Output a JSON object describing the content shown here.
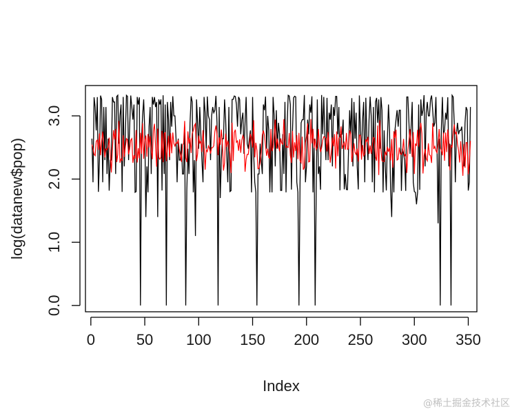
{
  "chart_data": {
    "type": "line",
    "title": "",
    "xlabel": "Index",
    "ylabel": "log(datanew$pop)",
    "xlim": [
      -5,
      358
    ],
    "ylim": [
      -0.1,
      3.48
    ],
    "x_ticks": [
      0,
      50,
      100,
      150,
      200,
      250,
      300,
      350
    ],
    "y_ticks": [
      0.0,
      1.0,
      2.0,
      3.0
    ],
    "y_tick_labels": [
      "0.0",
      "1.0",
      "2.0",
      "3.0"
    ],
    "grid": false,
    "legend": "none",
    "series": [
      {
        "color": "#000000",
        "n_points": 352,
        "range": [
          0.0,
          3.33
        ],
        "dips_to_zero_at": [
          46,
          70,
          88,
          118,
          154,
          193,
          208,
          324,
          334
        ],
        "shallow_dips": {
          "51": 1.4,
          "62": 1.4,
          "97": 1.1,
          "120": 1.7,
          "279": 1.4,
          "302": 1.6,
          "322": 1.3
        }
      },
      {
        "color": "#ff0000",
        "n_points": 352,
        "range": [
          2.05,
          2.95
        ]
      }
    ]
  },
  "watermark": "@稀土掘金技术社区"
}
